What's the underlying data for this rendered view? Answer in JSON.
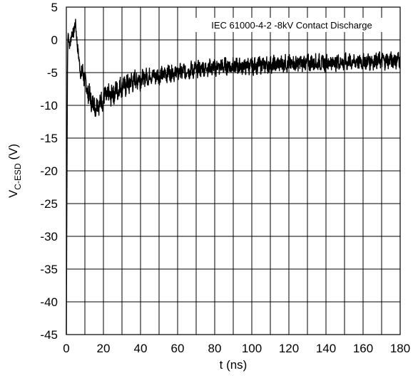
{
  "chart_data": {
    "type": "line",
    "title": "",
    "annotation": "IEC 61000-4-2 -8kV Contact Discharge",
    "xlabel": "t (ns)",
    "ylabel_main": "V",
    "ylabel_sub": "C-ESD",
    "ylabel_unit": " (V)",
    "xlim": [
      0,
      180
    ],
    "ylim": [
      -45,
      5
    ],
    "xticks": [
      0,
      20,
      40,
      60,
      80,
      100,
      120,
      140,
      160,
      180
    ],
    "yticks": [
      5,
      0,
      -5,
      -10,
      -15,
      -20,
      -25,
      -30,
      -35,
      -40,
      -45
    ],
    "x_minor_step": 10,
    "y_minor_step": 5,
    "grid": true,
    "line_color": "#000000",
    "series": [
      {
        "x": [
          0,
          0.2,
          0.4,
          0.6,
          0.8,
          1,
          1.5,
          2,
          2.5,
          3,
          3.5,
          4,
          4.5,
          5,
          5.5,
          6,
          6.5,
          7,
          7.5,
          8,
          9,
          10,
          11,
          12,
          13,
          14,
          15,
          16,
          17,
          18,
          19,
          20,
          22,
          24,
          26,
          28,
          30,
          32,
          35,
          38,
          40,
          45,
          50,
          55,
          60,
          65,
          70,
          75,
          80,
          85,
          90,
          95,
          100,
          105,
          110,
          115,
          120,
          125,
          130,
          135,
          140,
          145,
          150,
          155,
          160,
          165,
          170,
          175,
          180
        ],
        "y": [
          -45,
          -30,
          -17,
          -5,
          0,
          1,
          0,
          -1,
          0,
          1,
          1.5,
          1,
          2,
          2.3,
          1,
          -1,
          -2.5,
          -3.5,
          -4.5,
          -5.5,
          -5,
          -6,
          -7.5,
          -8,
          -9,
          -9.5,
          -10,
          -10,
          -10,
          -9.5,
          -9.5,
          -9,
          -8.5,
          -8.5,
          -8,
          -7.5,
          -7,
          -7,
          -6.5,
          -6,
          -6,
          -5.5,
          -5.5,
          -5,
          -5,
          -4.7,
          -4.5,
          -4.3,
          -4.2,
          -4,
          -4,
          -4,
          -4,
          -3.8,
          -3.8,
          -3.7,
          -3.6,
          -3.6,
          -3.5,
          -3.5,
          -3.5,
          -3.4,
          -3.4,
          -3.3,
          -3.3,
          -3.2,
          -3.2,
          -3.1,
          -3
        ]
      }
    ]
  }
}
